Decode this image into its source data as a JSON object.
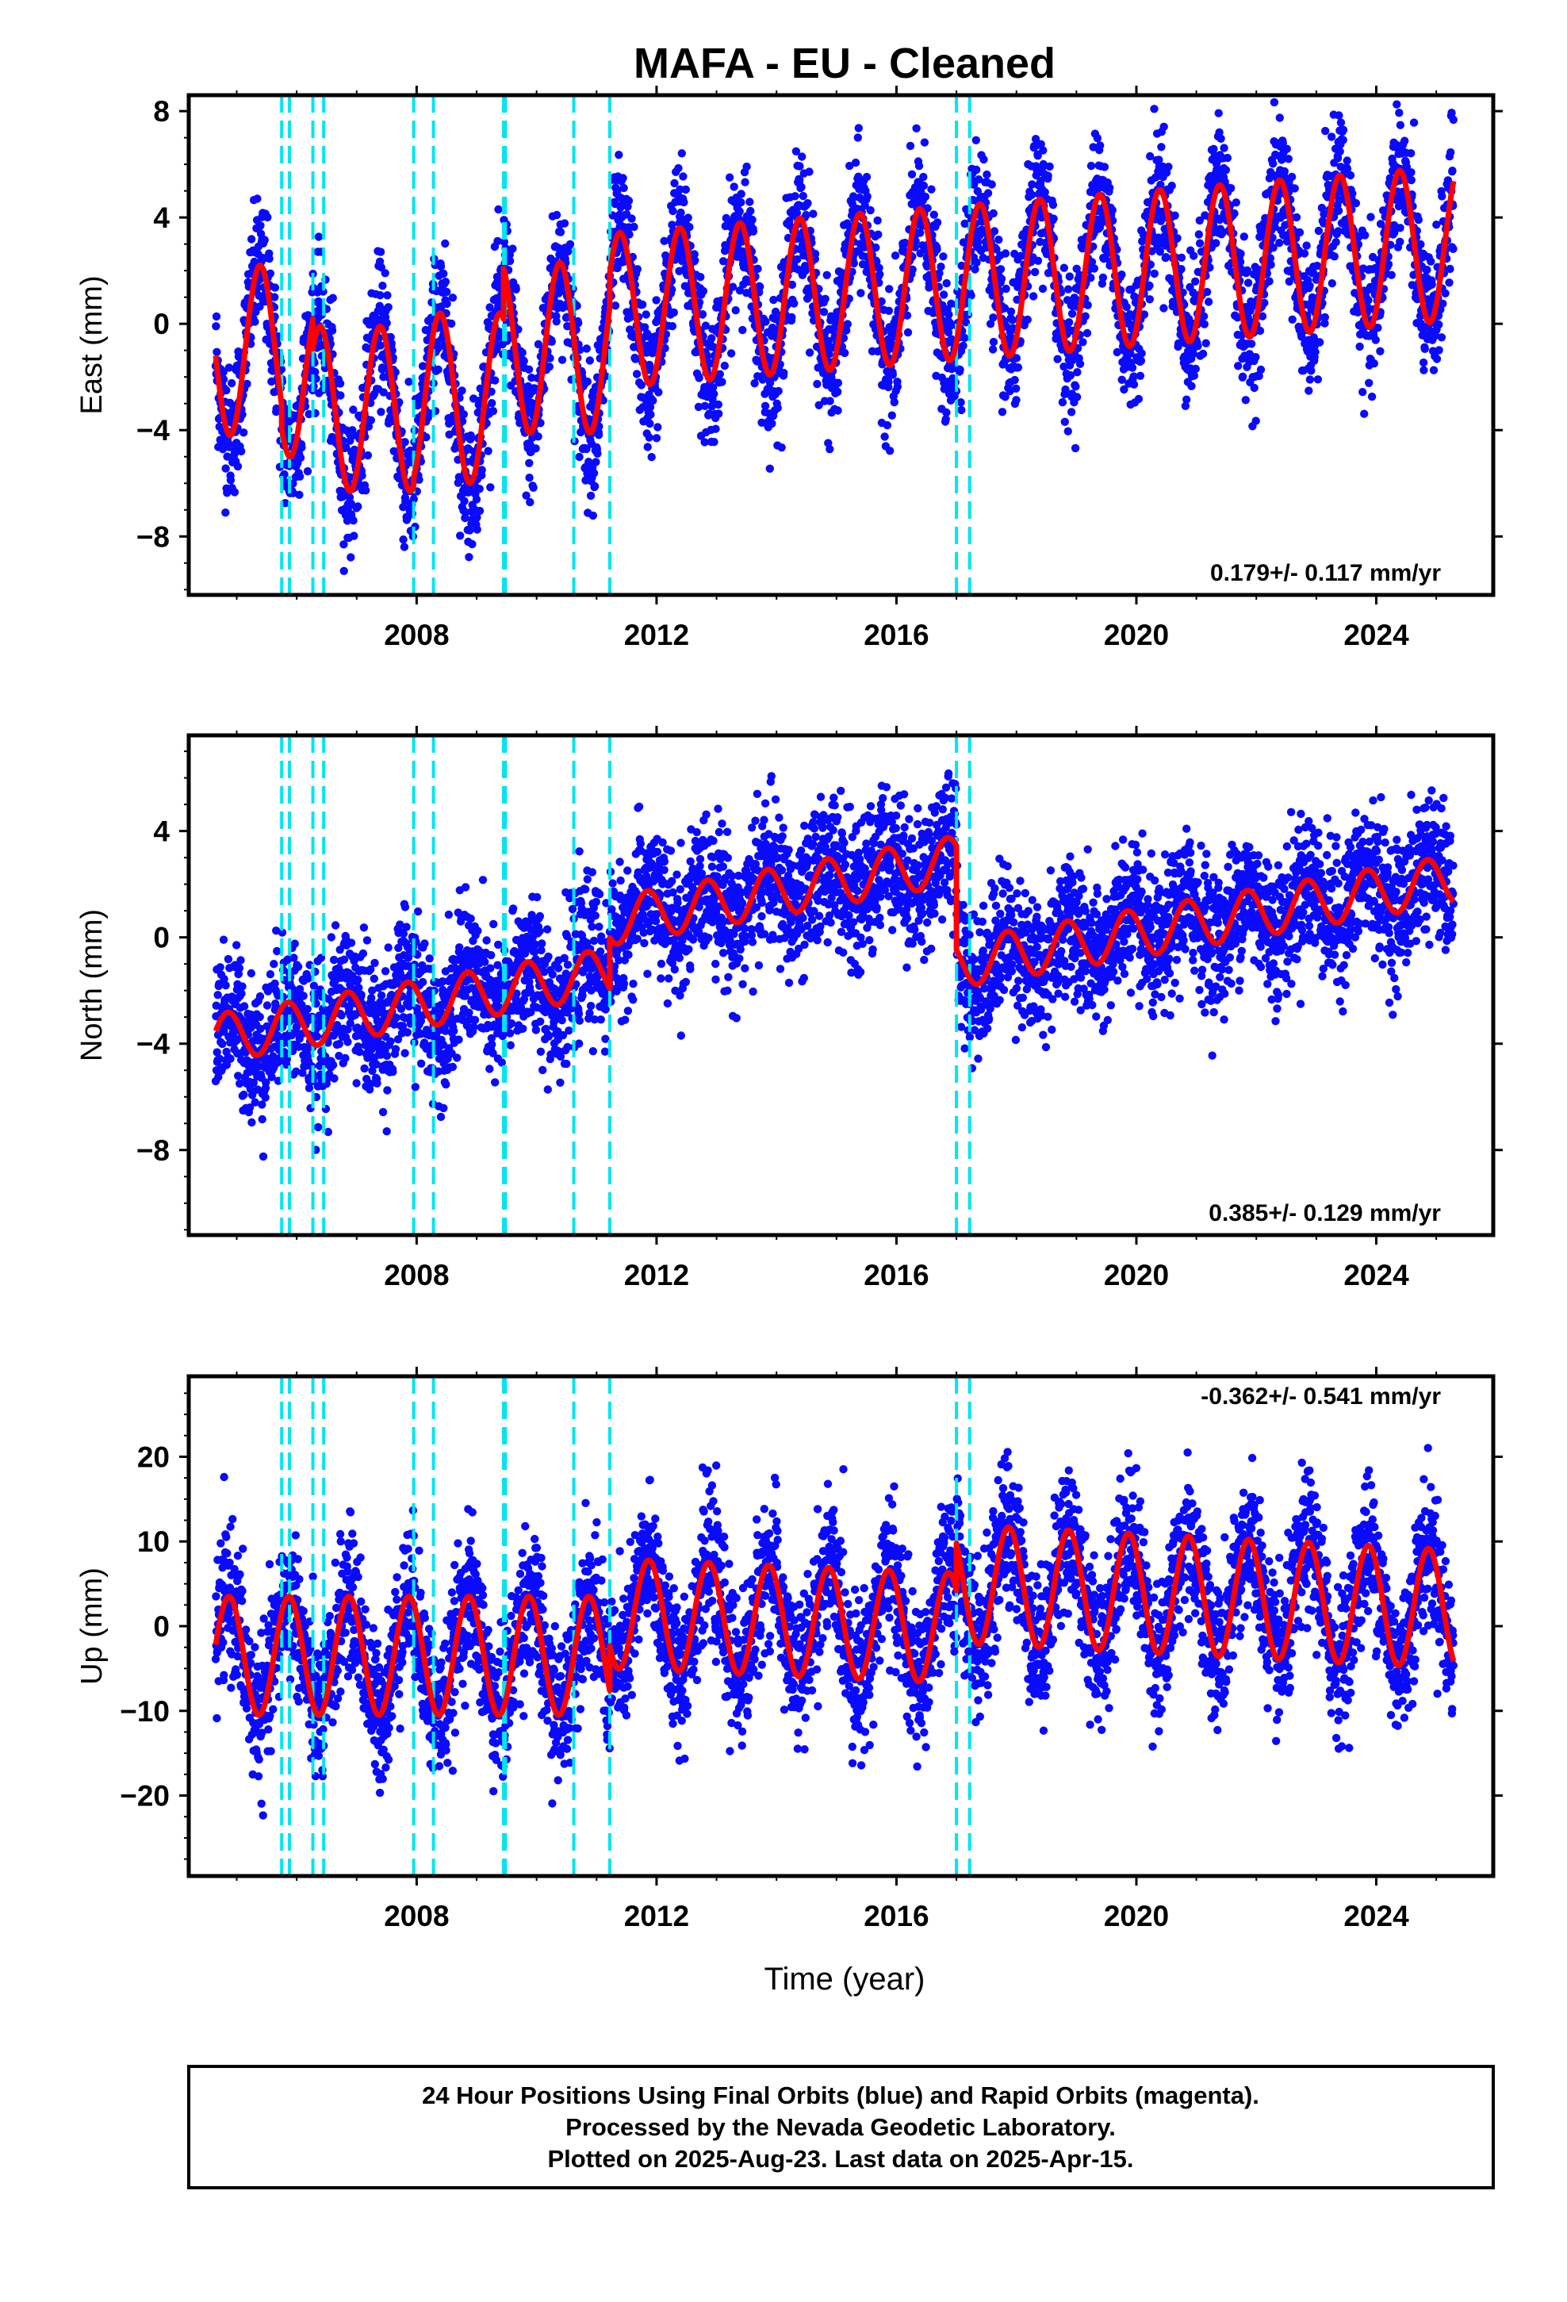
{
  "title": "MAFA  - EU - Cleaned",
  "colors": {
    "data": "#0a0aff",
    "model": "#ff0000",
    "breaks": "#00e5ee",
    "frame": "#000000"
  },
  "xlabel": "Time (year)",
  "caption": {
    "line1": "24 Hour Positions Using Final Orbits (blue) and Rapid Orbits (magenta).",
    "line2": "Processed by the Nevada Geodetic Laboratory.",
    "line3": "Plotted on 2025-Aug-23. Last data on 2025-Apr-15."
  },
  "chart_data": [
    {
      "type": "scatter",
      "component": "East",
      "ylabel": "East (mm)",
      "xlim": [
        2004.2,
        2025.95
      ],
      "ylim": [
        -10.2,
        8.6
      ],
      "yticks": [
        8,
        4,
        0,
        -4,
        -8
      ],
      "xticks": [
        2008,
        2012,
        2016,
        2020,
        2024
      ],
      "rate_label": "0.179+/- 0.117 mm/yr",
      "rate_position": "bottom-right",
      "breaks": [
        2005.75,
        2005.88,
        2006.27,
        2006.45,
        2007.95,
        2008.28,
        2009.45,
        2009.48,
        2010.62,
        2011.22,
        2017.0,
        2017.22
      ],
      "time_range": [
        2004.65,
        2025.29
      ],
      "model_segments": [
        {
          "x0": 2004.65,
          "x1": 2005.75,
          "offset": -1.0,
          "rate": 0.0,
          "amp": 3.2,
          "phase": 0.14
        },
        {
          "x0": 2005.75,
          "x1": 2006.27,
          "offset": -2.0,
          "rate": 0.0,
          "amp": 3.0,
          "phase": 0.14
        },
        {
          "x0": 2006.27,
          "x1": 2007.95,
          "offset": -3.2,
          "rate": 0.0,
          "amp": 3.1,
          "phase": 0.14
        },
        {
          "x0": 2007.95,
          "x1": 2009.45,
          "offset": -2.8,
          "rate": 0.0,
          "amp": 3.2,
          "phase": 0.14
        },
        {
          "x0": 2009.45,
          "x1": 2011.22,
          "offset": -0.9,
          "rate": 0.0,
          "amp": 3.2,
          "phase": 0.14
        },
        {
          "x0": 2011.22,
          "x1": 2025.29,
          "offset": 0.5,
          "rate": 0.179,
          "amp": 2.9,
          "phase": 0.14
        }
      ],
      "noise_sd": 1.25
    },
    {
      "type": "scatter",
      "component": "North",
      "ylabel": "North (mm)",
      "xlim": [
        2004.2,
        2025.95
      ],
      "ylim": [
        -11.2,
        7.6
      ],
      "yticks": [
        4,
        0,
        -4,
        -8
      ],
      "xticks": [
        2008,
        2012,
        2016,
        2020,
        2024
      ],
      "rate_label": "0.385+/- 0.129 mm/yr",
      "rate_position": "bottom-right",
      "breaks": [
        2005.75,
        2005.88,
        2006.27,
        2006.45,
        2007.95,
        2008.28,
        2009.45,
        2009.48,
        2010.62,
        2011.22,
        2017.0,
        2017.22
      ],
      "time_range": [
        2004.65,
        2025.29
      ],
      "model_segments": [
        {
          "x0": 2004.65,
          "x1": 2011.22,
          "offset": -3.8,
          "rate": 0.38,
          "amp": 0.9,
          "phase": 0.6
        },
        {
          "x0": 2011.22,
          "x1": 2017.0,
          "offset": 0.6,
          "rate": 0.4,
          "amp": 0.9,
          "phase": 0.6
        },
        {
          "x0": 2017.0,
          "x1": 2025.29,
          "offset": -1.0,
          "rate": 0.385,
          "amp": 0.9,
          "phase": 0.6
        }
      ],
      "noise_sd": 1.3
    },
    {
      "type": "scatter",
      "component": "Up",
      "ylabel": "Up (mm)",
      "xlim": [
        2004.2,
        2025.95
      ],
      "ylim": [
        -29.5,
        29.5
      ],
      "yticks": [
        20,
        10,
        0,
        -10,
        -20
      ],
      "xticks": [
        2008,
        2012,
        2016,
        2020,
        2024
      ],
      "rate_label": "-0.362+/- 0.541 mm/yr",
      "rate_position": "top-right",
      "breaks": [
        2005.75,
        2005.88,
        2006.27,
        2006.45,
        2007.95,
        2008.28,
        2009.45,
        2009.48,
        2010.62,
        2011.22,
        2017.0,
        2017.22
      ],
      "time_range": [
        2004.65,
        2025.29
      ],
      "model_segments": [
        {
          "x0": 2004.65,
          "x1": 2011.22,
          "offset": -3.5,
          "rate": 0.0,
          "amp": 7.0,
          "phase": 0.62
        },
        {
          "x0": 2011.22,
          "x1": 2017.0,
          "offset": 1.5,
          "rate": -0.3,
          "amp": 6.5,
          "phase": 0.62
        },
        {
          "x0": 2017.0,
          "x1": 2025.29,
          "offset": 5.0,
          "rate": -0.362,
          "amp": 7.0,
          "phase": 0.62
        }
      ],
      "noise_sd": 4.2
    }
  ]
}
